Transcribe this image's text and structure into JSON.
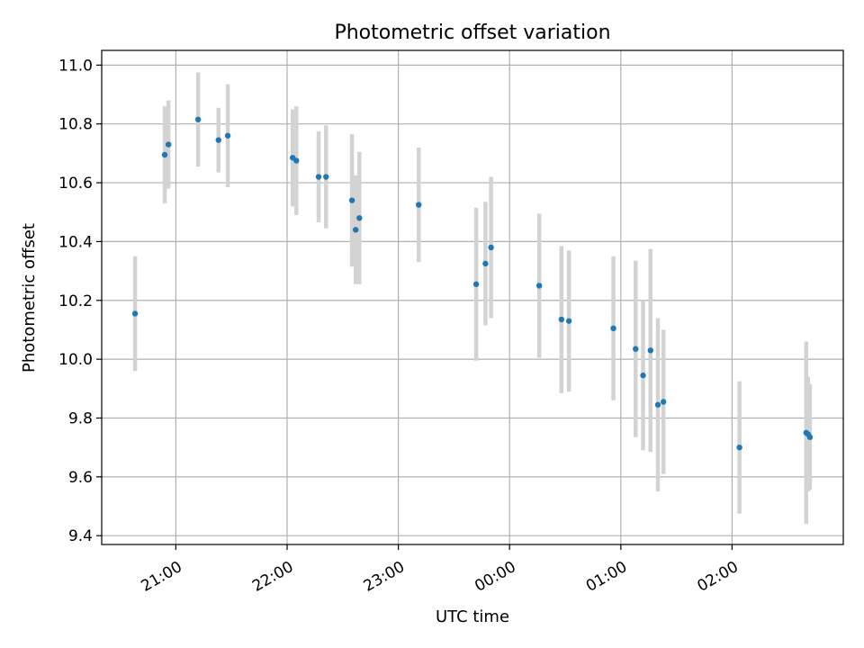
{
  "chart_data": {
    "type": "scatter",
    "title": "Photometric offset variation",
    "xlabel": "UTC time",
    "ylabel": "Photometric offset",
    "x_tick_labels": [
      "21:00",
      "22:00",
      "23:00",
      "00:00",
      "01:00",
      "02:00"
    ],
    "y_tick_labels": [
      "9.4",
      "9.6",
      "9.8",
      "10.0",
      "10.2",
      "10.4",
      "10.6",
      "10.8",
      "11.0"
    ],
    "x_ticks": [
      "2023-01-01T21:00",
      "2023-01-01T22:00",
      "2023-01-01T23:00",
      "2023-01-02T00:00",
      "2023-01-02T01:00",
      "2023-01-02T02:00"
    ],
    "y_ticks": [
      9.4,
      9.6,
      9.8,
      10.0,
      10.2,
      10.4,
      10.6,
      10.8,
      11.0
    ],
    "xlim": [
      "2023-01-01T20:20",
      "2023-01-02T03:00"
    ],
    "ylim": [
      9.37,
      11.05
    ],
    "grid": true,
    "marker_color": "#1f77b4",
    "errorbar_color": "#d3d3d3",
    "points": [
      {
        "x": "2023-01-01T20:38",
        "y": 10.155,
        "err": 0.195
      },
      {
        "x": "2023-01-01T20:54",
        "y": 10.695,
        "err": 0.165
      },
      {
        "x": "2023-01-01T20:56",
        "y": 10.73,
        "err": 0.15
      },
      {
        "x": "2023-01-01T21:12",
        "y": 10.815,
        "err": 0.16
      },
      {
        "x": "2023-01-01T21:23",
        "y": 10.745,
        "err": 0.11
      },
      {
        "x": "2023-01-01T21:28",
        "y": 10.76,
        "err": 0.175
      },
      {
        "x": "2023-01-01T22:03",
        "y": 10.685,
        "err": 0.165
      },
      {
        "x": "2023-01-01T22:05",
        "y": 10.675,
        "err": 0.185
      },
      {
        "x": "2023-01-01T22:17",
        "y": 10.62,
        "err": 0.155
      },
      {
        "x": "2023-01-01T22:21",
        "y": 10.62,
        "err": 0.175
      },
      {
        "x": "2023-01-01T22:35",
        "y": 10.54,
        "err": 0.225
      },
      {
        "x": "2023-01-01T22:37",
        "y": 10.44,
        "err": 0.185
      },
      {
        "x": "2023-01-01T22:39",
        "y": 10.48,
        "err": 0.225
      },
      {
        "x": "2023-01-01T23:11",
        "y": 10.525,
        "err": 0.195
      },
      {
        "x": "2023-01-01T23:42",
        "y": 10.255,
        "err": 0.26
      },
      {
        "x": "2023-01-01T23:47",
        "y": 10.325,
        "err": 0.21
      },
      {
        "x": "2023-01-01T23:50",
        "y": 10.38,
        "err": 0.24
      },
      {
        "x": "2023-01-02T00:16",
        "y": 10.25,
        "err": 0.245
      },
      {
        "x": "2023-01-02T00:28",
        "y": 10.135,
        "err": 0.25
      },
      {
        "x": "2023-01-02T00:32",
        "y": 10.13,
        "err": 0.24
      },
      {
        "x": "2023-01-02T00:56",
        "y": 10.105,
        "err": 0.245
      },
      {
        "x": "2023-01-02T01:08",
        "y": 10.035,
        "err": 0.3
      },
      {
        "x": "2023-01-02T01:12",
        "y": 9.945,
        "err": 0.255
      },
      {
        "x": "2023-01-02T01:16",
        "y": 10.03,
        "err": 0.345
      },
      {
        "x": "2023-01-02T01:20",
        "y": 9.845,
        "err": 0.295
      },
      {
        "x": "2023-01-02T01:23",
        "y": 9.855,
        "err": 0.245
      },
      {
        "x": "2023-01-02T02:04",
        "y": 9.7,
        "err": 0.225
      },
      {
        "x": "2023-01-02T02:40",
        "y": 9.75,
        "err": 0.31
      },
      {
        "x": "2023-01-02T02:41",
        "y": 9.745,
        "err": 0.195
      },
      {
        "x": "2023-01-02T02:42",
        "y": 9.735,
        "err": 0.18
      }
    ]
  }
}
